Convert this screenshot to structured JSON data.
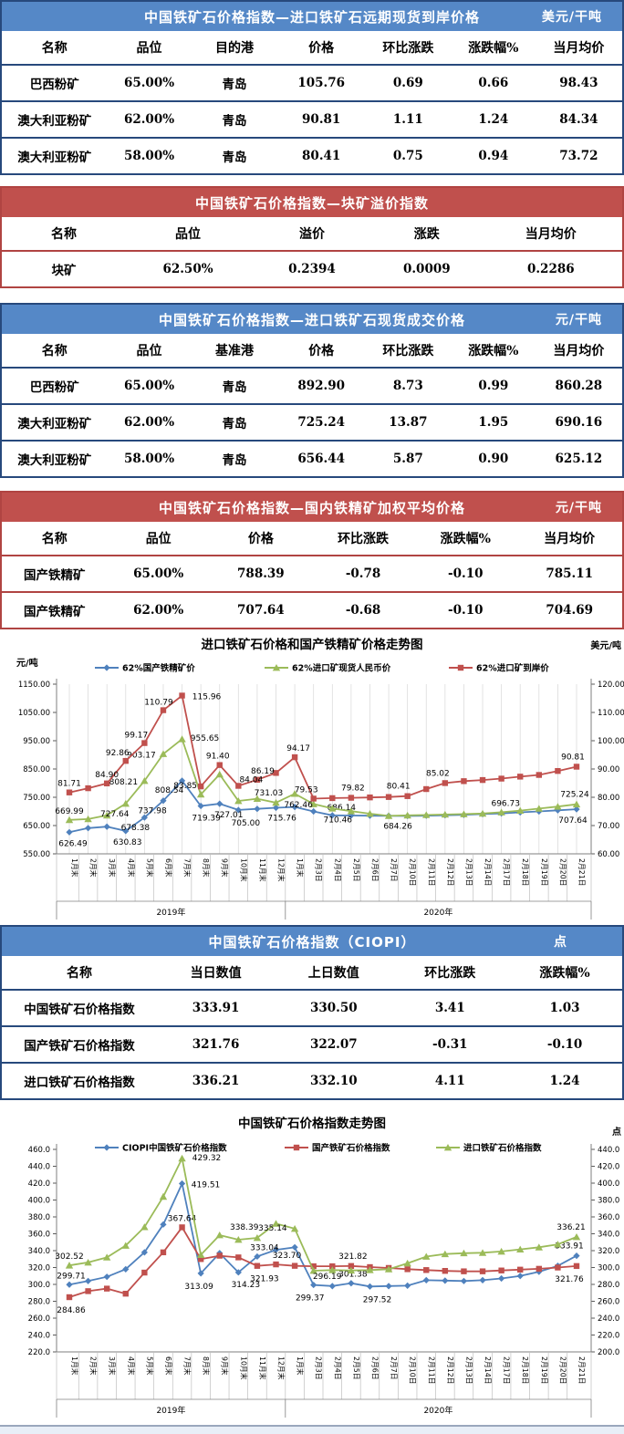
{
  "colors": {
    "blue_header": "#5588C7",
    "blue_border": "#27497C",
    "red_header": "#C0504D",
    "red_border": "#B04442",
    "series_blue": "#4F81BD",
    "series_green": "#9BBB59",
    "series_red": "#C0504D"
  },
  "tables": {
    "t1": {
      "title": "中国铁矿石价格指数—进口铁矿石远期现货到岸价格",
      "unit": "美元/干吨",
      "columns": [
        "名称",
        "品位",
        "目的港",
        "价格",
        "环比涨跌",
        "涨跌幅%",
        "当月均价"
      ],
      "rows": [
        [
          "巴西粉矿",
          "65.00%",
          "青岛",
          "105.76",
          "0.69",
          "0.66",
          "98.43"
        ],
        [
          "澳大利亚粉矿",
          "62.00%",
          "青岛",
          "90.81",
          "1.11",
          "1.24",
          "84.34"
        ],
        [
          "澳大利亚粉矿",
          "58.00%",
          "青岛",
          "80.41",
          "0.75",
          "0.94",
          "73.72"
        ]
      ]
    },
    "t2": {
      "title": "中国铁矿石价格指数—块矿溢价指数",
      "unit": "",
      "columns": [
        "名称",
        "品位",
        "溢价",
        "涨跌",
        "当月均价"
      ],
      "rows": [
        [
          "块矿",
          "62.50%",
          "0.2394",
          "0.0009",
          "0.2286"
        ]
      ]
    },
    "t3": {
      "title": "中国铁矿石价格指数—进口铁矿石现货成交价格",
      "unit": "元/干吨",
      "columns": [
        "名称",
        "品位",
        "基准港",
        "价格",
        "环比涨跌",
        "涨跌幅%",
        "当月均价"
      ],
      "rows": [
        [
          "巴西粉矿",
          "65.00%",
          "青岛",
          "892.90",
          "8.73",
          "0.99",
          "860.28"
        ],
        [
          "澳大利亚粉矿",
          "62.00%",
          "青岛",
          "725.24",
          "13.87",
          "1.95",
          "690.16"
        ],
        [
          "澳大利亚粉矿",
          "58.00%",
          "青岛",
          "656.44",
          "5.87",
          "0.90",
          "625.12"
        ]
      ]
    },
    "t4": {
      "title": "中国铁矿石价格指数—国内铁精矿加权平均价格",
      "unit": "元/干吨",
      "columns": [
        "名称",
        "品位",
        "价格",
        "环比涨跌",
        "涨跌幅%",
        "当月均价"
      ],
      "rows": [
        [
          "国产铁精矿",
          "65.00%",
          "788.39",
          "-0.78",
          "-0.10",
          "785.11"
        ],
        [
          "国产铁精矿",
          "62.00%",
          "707.64",
          "-0.68",
          "-0.10",
          "704.69"
        ]
      ]
    },
    "t5": {
      "title": "中国铁矿石价格指数（CIOPI）",
      "unit": "点",
      "columns": [
        "名称",
        "当日数值",
        "上日数值",
        "环比涨跌",
        "涨跌幅%"
      ],
      "rows": [
        [
          "中国铁矿石价格指数",
          "333.91",
          "330.50",
          "3.41",
          "1.03"
        ],
        [
          "国产铁矿石价格指数",
          "321.76",
          "322.07",
          "-0.31",
          "-0.10"
        ],
        [
          "进口铁矿石价格指数",
          "336.21",
          "332.10",
          "4.11",
          "1.24"
        ]
      ]
    }
  },
  "chart_data": [
    {
      "type": "line",
      "title": "进口铁矿石价格和国产铁精矿价格走势图",
      "left_axis": {
        "unit": "元/吨",
        "min": 550,
        "max": 1150,
        "step": 100,
        "decimals": 2
      },
      "right_axis": {
        "unit": "美元/吨",
        "min": 60,
        "max": 120,
        "step": 10,
        "decimals": 2
      },
      "vertical_gridlines": true,
      "legend_position": "top",
      "categories": [
        "1月末",
        "2月末",
        "3月末",
        "4月末",
        "5月末",
        "6月末",
        "7月末",
        "8月末",
        "9月末",
        "10月末",
        "11月末",
        "12月末",
        "1月末",
        "2月3日",
        "2月4日",
        "2月5日",
        "2月6日",
        "2月7日",
        "2月10日",
        "2月11日",
        "2月12日",
        "2月13日",
        "2月14日",
        "2月17日",
        "2月18日",
        "2月19日",
        "2月20日",
        "2月21日"
      ],
      "year_groups": [
        {
          "label": "2019年",
          "count": 12
        },
        {
          "label": "2020年",
          "count": 16
        }
      ],
      "series": [
        {
          "name": "62%国产铁精矿价",
          "color": "#4F81BD",
          "marker": "diamond",
          "axis": "left",
          "values": [
            626.49,
            641,
            646,
            630.83,
            678.38,
            737.98,
            808.54,
            719.39,
            727.01,
            705.0,
            709,
            713,
            715.76,
            700,
            686.14,
            685.5,
            685,
            684.5,
            684,
            685,
            686.5,
            688,
            690.5,
            693,
            696.73,
            700,
            704,
            707.64
          ],
          "labels": [
            {
              "i": 0,
              "t": "626.49",
              "dx": 4,
              "dy": 15
            },
            {
              "i": 3,
              "t": "630.83",
              "dx": 2,
              "dy": 15
            },
            {
              "i": 4,
              "t": "678.38",
              "dx": -10,
              "dy": 14
            },
            {
              "i": 5,
              "t": "737.98",
              "dx": -12,
              "dy": 14
            },
            {
              "i": 6,
              "t": "808.54",
              "dx": -14,
              "dy": 13
            },
            {
              "i": 7,
              "t": "719.39",
              "dx": 6,
              "dy": 16
            },
            {
              "i": 8,
              "t": "727.01",
              "dx": 10,
              "dy": 15
            },
            {
              "i": 9,
              "t": "705.00",
              "dx": 8,
              "dy": 17
            },
            {
              "i": 12,
              "t": "715.76",
              "dx": -14,
              "dy": 15
            },
            {
              "i": 14,
              "t": "686.14",
              "dx": 10,
              "dy": -6
            },
            {
              "i": 24,
              "t": "696.73",
              "dx": -16,
              "dy": -7
            },
            {
              "i": 27,
              "t": "707.64",
              "dx": -4,
              "dy": 15
            }
          ]
        },
        {
          "name": "62%进口矿现货人民币价",
          "color": "#9BBB59",
          "marker": "triangle",
          "axis": "left",
          "values": [
            669.99,
            673,
            686,
            727.64,
            808.21,
            903.17,
            955.65,
            760,
            831,
            737,
            745,
            731.03,
            762.46,
            726,
            710.46,
            701,
            692,
            684.26,
            686,
            687.5,
            689,
            690.5,
            692.5,
            697,
            703,
            710,
            717,
            725.24
          ],
          "labels": [
            {
              "i": 0,
              "t": "669.99",
              "dx": 0,
              "dy": -7
            },
            {
              "i": 3,
              "t": "727.64",
              "dx": -12,
              "dy": 14
            },
            {
              "i": 4,
              "t": "808.21",
              "dx": -23,
              "dy": 4
            },
            {
              "i": 5,
              "t": "903.17",
              "dx": -24,
              "dy": 4
            },
            {
              "i": 6,
              "t": "955.65",
              "dx": 25,
              "dy": 2
            },
            {
              "i": 11,
              "t": "731.03",
              "dx": -8,
              "dy": -8
            },
            {
              "i": 12,
              "t": "762.46",
              "dx": 4,
              "dy": 15
            },
            {
              "i": 14,
              "t": "710.46",
              "dx": 6,
              "dy": 15
            },
            {
              "i": 17,
              "t": "684.26",
              "dx": 10,
              "dy": 14
            },
            {
              "i": 27,
              "t": "725.24",
              "dx": -2,
              "dy": -8
            }
          ]
        },
        {
          "name": "62%进口矿到岸价",
          "color": "#C0504D",
          "marker": "square",
          "axis": "right",
          "values": [
            81.71,
            83.2,
            84.9,
            92.86,
            99.17,
            110.79,
            115.96,
            83.85,
            91.4,
            84.04,
            86.19,
            88.6,
            94.17,
            79.53,
            79.7,
            79.82,
            79.95,
            80.1,
            80.41,
            82.9,
            85.02,
            85.7,
            86.1,
            86.6,
            87.3,
            87.9,
            89.3,
            90.81
          ],
          "labels": [
            {
              "i": 0,
              "t": "81.71",
              "dx": 0,
              "dy": -7
            },
            {
              "i": 2,
              "t": "84.90",
              "dx": 0,
              "dy": -7
            },
            {
              "i": 3,
              "t": "92.86",
              "dx": -9,
              "dy": -6
            },
            {
              "i": 4,
              "t": "99.17",
              "dx": -9,
              "dy": -6
            },
            {
              "i": 5,
              "t": "110.79",
              "dx": -5,
              "dy": -6
            },
            {
              "i": 6,
              "t": "115.96",
              "dx": 27,
              "dy": 4
            },
            {
              "i": 7,
              "t": "83.85",
              "dx": -17,
              "dy": 2
            },
            {
              "i": 8,
              "t": "91.40",
              "dx": -2,
              "dy": -7
            },
            {
              "i": 9,
              "t": "84.04",
              "dx": 14,
              "dy": -4
            },
            {
              "i": 10,
              "t": "86.19",
              "dx": 6,
              "dy": -7
            },
            {
              "i": 12,
              "t": "94.17",
              "dx": 4,
              "dy": -7
            },
            {
              "i": 13,
              "t": "79.53",
              "dx": -8,
              "dy": -7
            },
            {
              "i": 15,
              "t": "79.82",
              "dx": 2,
              "dy": -8
            },
            {
              "i": 18,
              "t": "80.41",
              "dx": -10,
              "dy": -8
            },
            {
              "i": 20,
              "t": "85.02",
              "dx": -8,
              "dy": -8
            },
            {
              "i": 27,
              "t": "90.81",
              "dx": -4,
              "dy": -8
            }
          ]
        }
      ]
    },
    {
      "type": "line",
      "title": "中国铁矿石价格指数走势图",
      "left_axis": {
        "unit": "",
        "min": 220,
        "max": 460,
        "step": 20,
        "decimals": 1
      },
      "right_axis": {
        "unit": "点",
        "min": 200,
        "max": 440,
        "step": 20,
        "decimals": 1
      },
      "vertical_gridlines": false,
      "legend_position": "top",
      "categories": [
        "1月末",
        "2月末",
        "3月末",
        "4月末",
        "5月末",
        "6月末",
        "7月末",
        "8月末",
        "9月末",
        "10月末",
        "11月末",
        "12月末",
        "1月末",
        "2月3日",
        "2月4日",
        "2月5日",
        "2月6日",
        "2月7日",
        "2月10日",
        "2月11日",
        "2月12日",
        "2月13日",
        "2月14日",
        "2月17日",
        "2月18日",
        "2月19日",
        "2月20日",
        "2月21日"
      ],
      "year_groups": [
        {
          "label": "2019年",
          "count": 12
        },
        {
          "label": "2020年",
          "count": 16
        }
      ],
      "series": [
        {
          "name": "CIOPI中国铁矿石价格指数",
          "color": "#4F81BD",
          "marker": "diamond",
          "axis": "left",
          "values": [
            299.71,
            304,
            309,
            318,
            338,
            371,
            419.51,
            313.09,
            337,
            314.23,
            333.04,
            341,
            344,
            299.37,
            298,
            301.38,
            297.52,
            298,
            298.5,
            305,
            304.5,
            304,
            305,
            307,
            310,
            315,
            322,
            333.91
          ],
          "labels": [
            {
              "i": 0,
              "t": "299.71",
              "dx": 2,
              "dy": -7
            },
            {
              "i": 6,
              "t": "419.51",
              "dx": 26,
              "dy": 4
            },
            {
              "i": 7,
              "t": "313.09",
              "dx": -2,
              "dy": 17
            },
            {
              "i": 9,
              "t": "314.23",
              "dx": 8,
              "dy": 16
            },
            {
              "i": 10,
              "t": "333.04",
              "dx": 8,
              "dy": -7
            },
            {
              "i": 13,
              "t": "299.37",
              "dx": -4,
              "dy": 17
            },
            {
              "i": 15,
              "t": "301.38",
              "dx": 2,
              "dy": -7
            },
            {
              "i": 16,
              "t": "297.52",
              "dx": 8,
              "dy": 17
            },
            {
              "i": 27,
              "t": "333.91",
              "dx": -8,
              "dy": -8
            }
          ]
        },
        {
          "name": "国产铁矿石价格指数",
          "color": "#C0504D",
          "marker": "square",
          "axis": "left",
          "values": [
            284.86,
            292,
            295,
            289,
            314,
            338,
            367.64,
            330,
            334,
            332,
            321.93,
            323.7,
            322,
            321.5,
            321.5,
            321.82,
            320.5,
            319.5,
            318,
            317,
            316,
            315.5,
            315.5,
            316.5,
            317.5,
            318.5,
            320,
            321.76
          ],
          "labels": [
            {
              "i": 0,
              "t": "284.86",
              "dx": 2,
              "dy": 17
            },
            {
              "i": 6,
              "t": "367.64",
              "dx": 0,
              "dy": -7
            },
            {
              "i": 10,
              "t": "321.93",
              "dx": 8,
              "dy": 17
            },
            {
              "i": 11,
              "t": "323.70",
              "dx": 12,
              "dy": -7
            },
            {
              "i": 15,
              "t": "321.82",
              "dx": 2,
              "dy": -8
            },
            {
              "i": 27,
              "t": "321.76",
              "dx": -8,
              "dy": 17
            }
          ]
        },
        {
          "name": "进口铁矿石价格指数",
          "color": "#9BBB59",
          "marker": "triangle",
          "axis": "right",
          "values": [
            302.52,
            306,
            312,
            326,
            348,
            384,
            429.32,
            315,
            338.39,
            333,
            335.14,
            352,
            346,
            296.19,
            297,
            296.5,
            297,
            298,
            305,
            313,
            316,
            317,
            317.5,
            319,
            321.5,
            324,
            327.5,
            336.21
          ],
          "labels": [
            {
              "i": 0,
              "t": "302.52",
              "dx": 0,
              "dy": -7
            },
            {
              "i": 6,
              "t": "429.32",
              "dx": 27,
              "dy": 2
            },
            {
              "i": 8,
              "t": "338.39",
              "dx": 27,
              "dy": 0
            },
            {
              "i": 10,
              "t": "335.14",
              "dx": 17,
              "dy": -8
            },
            {
              "i": 13,
              "t": "296.19",
              "dx": 15,
              "dy": 9
            },
            {
              "i": 27,
              "t": "336.21",
              "dx": -6,
              "dy": -8
            }
          ]
        }
      ]
    }
  ]
}
